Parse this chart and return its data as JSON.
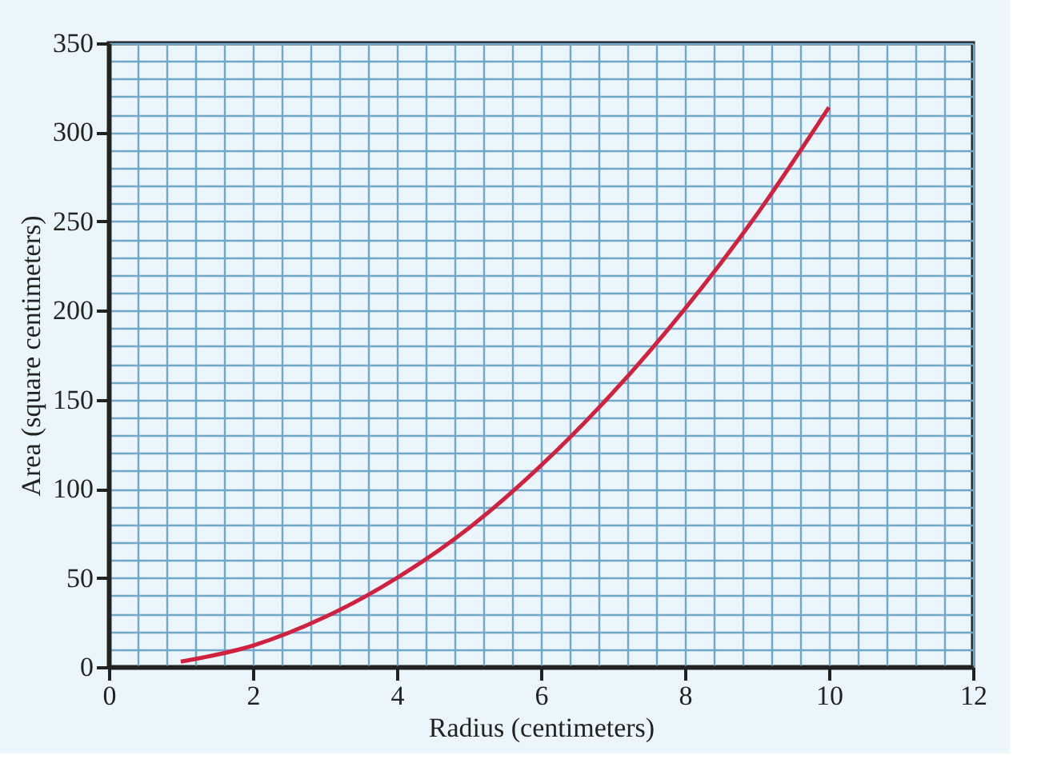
{
  "chart_data": {
    "type": "line",
    "xlabel": "Radius (centimeters)",
    "ylabel": "Area (square centimeters)",
    "x": [
      1,
      2,
      3,
      4,
      5,
      6,
      7,
      8,
      9,
      10
    ],
    "series": [
      {
        "color": "#d0213f",
        "values": [
          3,
          12,
          28,
          50,
          78,
          113,
          154,
          201,
          254,
          314
        ]
      }
    ],
    "xlim": [
      0,
      12
    ],
    "xticks": [
      0,
      2,
      4,
      6,
      8,
      10,
      12
    ],
    "ylim": [
      0,
      350
    ],
    "yticks": [
      0,
      50,
      100,
      150,
      200,
      250,
      300,
      350
    ],
    "grid": true,
    "marker": "none",
    "line_style": "solid"
  }
}
